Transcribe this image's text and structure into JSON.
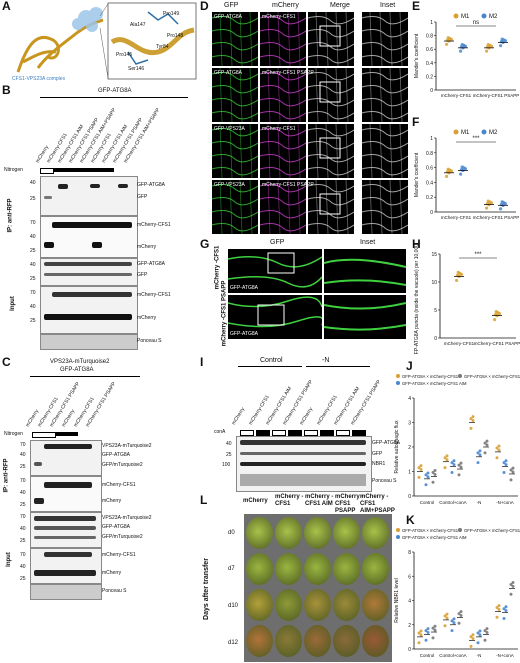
{
  "panels": {
    "A": {
      "label": "A",
      "complex_label": "CFS1-VPS23A complex",
      "residues": [
        "Pro149",
        "Ala147",
        "Pro148",
        "Tyr84",
        "Pro145",
        "Ser146"
      ]
    },
    "B": {
      "label": "B",
      "construct": "GFP-ATG8A",
      "lanes": [
        "mCherry",
        "mCherry-CFS1",
        "mCherry-CFS1 AIM",
        "mCherry-CFS1 PSAPP",
        "mCherry-CFS1 AIM+PSAPP",
        "mCherry-CFS1",
        "mCherry-CFS1 AIM",
        "mCherry-CFS1 PSAPP",
        "mCherry-CFS1 AIM+PSAPP"
      ],
      "row_label": "Nitrogen",
      "ip_label": "IP: anti-RFP",
      "input_label": "Input",
      "bands": [
        "GFP-ATG8A",
        "GFP",
        "mCherry-CFS1",
        "mCherry",
        "GFP-ATG8A",
        "GFP",
        "mCherry-CFS1",
        "mCherry",
        "Ponceau S"
      ],
      "mw": [
        "40",
        "25",
        "70",
        "40",
        "25",
        "40",
        "25",
        "70",
        "40",
        "25"
      ]
    },
    "C": {
      "label": "C",
      "construct1": "VPS23A-mTurquoise2",
      "construct2": "GFP-ATG8A",
      "lanes": [
        "mCherry",
        "mCherry-CFS1",
        "mCherry-CFS1 PSAPP",
        "mCherry",
        "mCherry-CFS1",
        "mCherry-CFS1 PSAPP"
      ],
      "row_label": "Nitrogen",
      "ip_label": "IP: anti-RFP",
      "input_label": "Input",
      "bands": [
        "VPS23A-mTurquoise2",
        "GFP-ATG8A",
        "GFP/mTurquoise2",
        "mCherry-CFS1",
        "mCherry",
        "VPS23A-mTurquoise2",
        "GFP-ATG8A",
        "GFP/mTurquoise2",
        "mCherry-CFS1",
        "mCherry",
        "Ponceau S"
      ],
      "mw": [
        "70",
        "40",
        "25",
        "70",
        "40",
        "25",
        "70",
        "40",
        "25",
        "70",
        "40",
        "25"
      ]
    },
    "D": {
      "label": "D",
      "cols": [
        "GFP",
        "mCherry",
        "Merge",
        "Inset"
      ],
      "rows": [
        {
          "g": "GFP-ATG8A",
          "m": "mCherry-CFS1"
        },
        {
          "g": "GFP-ATG8A",
          "m": "mCherry-CFS1 PSAPP"
        },
        {
          "g": "GFP-VPS23A",
          "m": "mCherry-CFS1"
        },
        {
          "g": "GFP-VPS23A",
          "m": "mCherry-CFS1 PSAPP"
        }
      ]
    },
    "E": {
      "label": "E",
      "legend": [
        "M1",
        "M2"
      ],
      "ylabel": "Mander's coefficient",
      "sig": "ns"
    },
    "F": {
      "label": "F",
      "legend": [
        "M1",
        "M2"
      ],
      "ylabel": "Mander's coefficient",
      "sig": "***"
    },
    "G": {
      "label": "G",
      "cols": [
        "GFP",
        "Inset"
      ],
      "rows": [
        "mCherry -CFS1",
        "mCherry -CFS1 PSAPP"
      ],
      "row_sub": "GFP-ATG8A"
    },
    "H": {
      "label": "H",
      "ylabel": "GFP-ATG8A puncta (inside the vacuole) per 10,000 µm²",
      "sig": "***"
    },
    "I": {
      "label": "I",
      "conditions": [
        "Control",
        "-N"
      ],
      "conA": "conA",
      "lanes": [
        "mCherry",
        "mCherry-CFS1",
        "mCherry-CFS1 AIM",
        "mCherry-CFS1 PSAPP",
        "mCherry",
        "mCherry-CFS1",
        "mCherry-CFS1 AIM",
        "mCherry-CFS1 PSAPP"
      ],
      "bands": [
        "GFP-ATG8A",
        "GFP",
        "NBR1",
        "Ponceau S"
      ],
      "mw": [
        "40",
        "25",
        "100"
      ]
    },
    "J": {
      "label": "J",
      "ylabel": "Relative autophagic flux",
      "groups": [
        "Control",
        "Control+conA",
        "-N",
        "-N+conA"
      ],
      "legend": [
        "GFP-ATG8A × mCherry-CFS1",
        "GFP-ATG8A × mCherry-CFS1 AIM",
        "GFP-ATG8A × mCherry-CFS1 PSAPP"
      ]
    },
    "K": {
      "label": "K",
      "ylabel": "Relative NBR1 level",
      "groups": [
        "Control",
        "Control+conA",
        "-N",
        "-N+conA"
      ],
      "legend": [
        "GFP-ATG8A × mCherry-CFS1",
        "GFP-ATG8A × mCherry-CFS1 AIM",
        "GFP-ATG8A × mCherry-CFS1 PSAPP"
      ]
    },
    "L": {
      "label": "L",
      "cols": [
        "mCherry",
        "mCherry -CFS1",
        "mCherry -CFS1 AIM",
        "mCherry -CFS1 PSAPP",
        "mCherry -CFS1 AIM+PSAPP"
      ],
      "rows": [
        "d0",
        "d7",
        "d10",
        "d12"
      ],
      "ylabel": "Days after transfer"
    }
  },
  "chart_data": [
    {
      "type": "scatter",
      "title": "",
      "ylabel": "Mander's coefficient",
      "ylim": [
        0.0,
        1.0
      ],
      "categories": [
        "mCherry-CFS1",
        "mCherry-CFS1 PSAPP"
      ],
      "series": [
        {
          "name": "M1",
          "values": [
            0.72,
            0.62
          ]
        },
        {
          "name": "M2",
          "values": [
            0.62,
            0.7
          ]
        }
      ]
    },
    {
      "type": "scatter",
      "title": "",
      "ylabel": "Mander's coefficient",
      "ylim": [
        0.0,
        1.0
      ],
      "categories": [
        "mCherry-CFS1",
        "mCherry-CFS1 PSAPP"
      ],
      "series": [
        {
          "name": "M1",
          "values": [
            0.53,
            0.1
          ]
        },
        {
          "name": "M2",
          "values": [
            0.56,
            0.09
          ]
        }
      ]
    },
    {
      "type": "scatter",
      "title": "",
      "ylabel": "GFP-ATG8A puncta (inside the vacuole) per 10,000 µm²",
      "ylim": [
        0,
        15
      ],
      "categories": [
        "mCherry-CFS1",
        "mCherry-CFS1 PSAPP"
      ],
      "series": [
        {
          "values": [
            11,
            4
          ]
        }
      ]
    },
    {
      "type": "scatter",
      "title": "",
      "ylabel": "Relative autophagic flux",
      "ylim": [
        0,
        4
      ],
      "categories": [
        "Control",
        "Control+conA",
        "-N",
        "-N+conA"
      ],
      "series": [
        {
          "name": "GFP-ATG8A × mCherry-CFS1",
          "values": [
            1.0,
            1.4,
            3.0,
            1.8
          ]
        },
        {
          "name": "GFP-ATG8A × mCherry-CFS1 AIM",
          "values": [
            0.7,
            1.2,
            1.6,
            1.2
          ]
        },
        {
          "name": "GFP-ATG8A × mCherry-CFS1 PSAPP",
          "values": [
            0.8,
            1.1,
            2.0,
            0.9
          ]
        }
      ]
    },
    {
      "type": "scatter",
      "title": "",
      "ylabel": "Relative NBR1 level",
      "ylim": [
        0,
        8
      ],
      "categories": [
        "Control",
        "Control+conA",
        "-N",
        "-N+conA"
      ],
      "series": [
        {
          "name": "GFP-ATG8A × mCherry-CFS1",
          "values": [
            1.0,
            2.4,
            0.7,
            3.1
          ]
        },
        {
          "name": "GFP-ATG8A × mCherry-CFS1 AIM",
          "values": [
            1.2,
            2.0,
            1.0,
            3.0
          ]
        },
        {
          "name": "GFP-ATG8A × mCherry-CFS1 PSAPP",
          "values": [
            1.4,
            2.6,
            1.2,
            5.0
          ]
        }
      ]
    }
  ]
}
